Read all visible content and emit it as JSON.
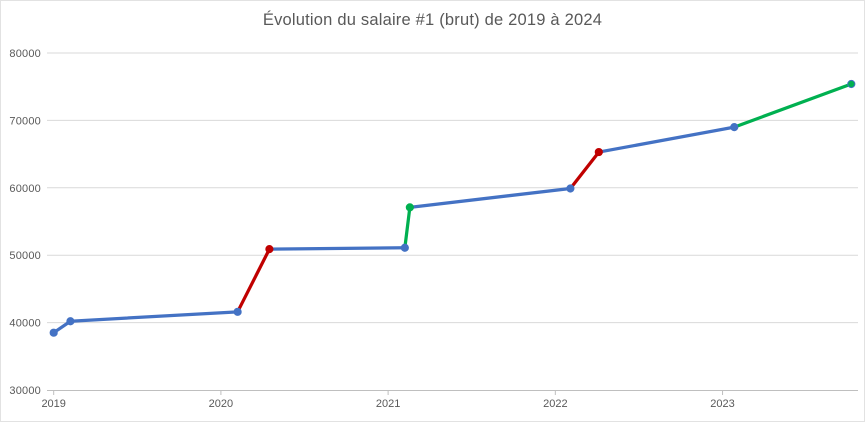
{
  "chart_data": {
    "type": "line",
    "title": "Évolution du salaire #1 (brut) de 2019 à 2024",
    "xlabel": "",
    "ylabel": "",
    "legend": false,
    "grid": true,
    "x_axis": {
      "min": 2018.96,
      "max": 2023.81,
      "tick_values": [
        2019,
        2020,
        2021,
        2022,
        2023
      ],
      "tick_labels": [
        "2019",
        "2020",
        "2021",
        "2022",
        "2023"
      ]
    },
    "y_axis": {
      "min": 30000,
      "max": 80000,
      "tick_step": 10000,
      "tick_values": [
        30000,
        40000,
        50000,
        60000,
        70000,
        80000
      ],
      "tick_labels": [
        "30000",
        "40000",
        "50000",
        "60000",
        "70000",
        "80000"
      ]
    },
    "series": [
      {
        "marker": "circle",
        "points": [
          {
            "x": 2019.0,
            "y": 38500,
            "marker_color": "blue"
          },
          {
            "x": 2019.1,
            "y": 40200,
            "marker_color": "blue",
            "segment_color": "blue"
          },
          {
            "x": 2020.1,
            "y": 41600,
            "marker_color": "blue",
            "segment_color": "blue"
          },
          {
            "x": 2020.29,
            "y": 50900,
            "marker_color": "red",
            "segment_color": "red"
          },
          {
            "x": 2021.1,
            "y": 51100,
            "marker_color": "blue",
            "segment_color": "blue"
          },
          {
            "x": 2021.13,
            "y": 57100,
            "marker_color": "green",
            "segment_color": "green"
          },
          {
            "x": 2022.09,
            "y": 59900,
            "marker_color": "blue",
            "segment_color": "blue"
          },
          {
            "x": 2022.26,
            "y": 65300,
            "marker_color": "red",
            "segment_color": "red"
          },
          {
            "x": 2023.07,
            "y": 69000,
            "marker_color": "blue",
            "segment_color": "blue"
          },
          {
            "x": 2023.77,
            "y": 75400,
            "marker_color": "green",
            "segment_color": "green",
            "marker_stroke": "blue"
          }
        ]
      }
    ],
    "colors": {
      "blue": "#4472C4",
      "red": "#C00000",
      "green": "#00B050",
      "gridline": "#D9D9D9",
      "axis": "#BFBFBF",
      "text": "#595959"
    }
  }
}
